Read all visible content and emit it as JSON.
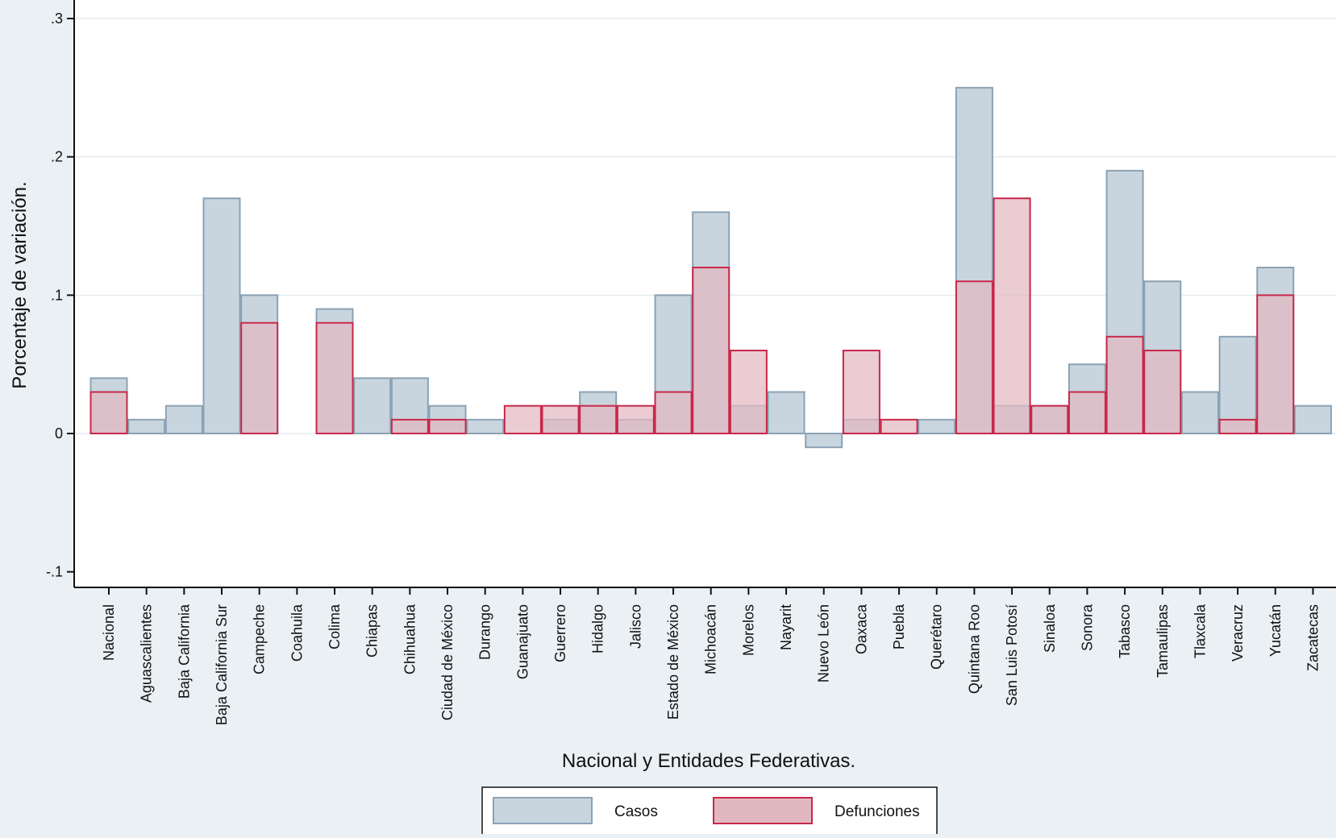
{
  "chart_data": {
    "type": "bar",
    "xlabel": "Nacional y Entidades Federativas.",
    "ylabel": "Porcentaje de variación.",
    "ylim": [
      -0.1,
      0.3
    ],
    "y_ticks": [
      ".3",
      ".2",
      ".1",
      "0",
      "-.1"
    ],
    "y_tick_values": [
      0.3,
      0.2,
      0.1,
      0,
      -0.1
    ],
    "grid": true,
    "legend_position": "bottom",
    "categories": [
      "Nacional",
      "Aguascalientes",
      "Baja California",
      "Baja California Sur",
      "Campeche",
      "Coahuila",
      "Colima",
      "Chiapas",
      "Chihuahua",
      "Ciudad de México",
      "Durango",
      "Guanajuato",
      "Guerrero",
      "Hidalgo",
      "Jalisco",
      "Estado de México",
      "Michoacán",
      "Morelos",
      "Nayarit",
      "Nuevo León",
      "Oaxaca",
      "Puebla",
      "Querétaro",
      "Quintana Roo",
      "San Luis Potosí",
      "Sinaloa",
      "Sonora",
      "Tabasco",
      "Tamaulipas",
      "Tlaxcala",
      "Veracruz",
      "Yucatán",
      "Zacatecas"
    ],
    "series": [
      {
        "name": "Casos",
        "color": "#c9d5de",
        "stroke": "#8ba2b4",
        "values": [
          0.04,
          0.01,
          0.02,
          0.17,
          0.1,
          0,
          0.09,
          0.04,
          0.04,
          0.02,
          0.01,
          0,
          0.01,
          0.03,
          0.01,
          0.1,
          0.16,
          0.02,
          0.03,
          -0.01,
          0.01,
          0,
          0.01,
          0.25,
          0.02,
          0.02,
          0.05,
          0.19,
          0.11,
          0.03,
          0.07,
          0.12,
          0.02
        ]
      },
      {
        "name": "Defunciones",
        "color": "#e2b8c0",
        "stroke": "#c8284a",
        "values": [
          0.03,
          0,
          0,
          0,
          0.08,
          0,
          0.08,
          0,
          0.01,
          0.01,
          0,
          0.02,
          0.02,
          0.02,
          0.02,
          0.03,
          0.12,
          0.06,
          0,
          0,
          0.06,
          0.01,
          0,
          0.11,
          0.17,
          0.02,
          0.03,
          0.07,
          0.06,
          0,
          0.01,
          0.1,
          0
        ]
      }
    ]
  }
}
